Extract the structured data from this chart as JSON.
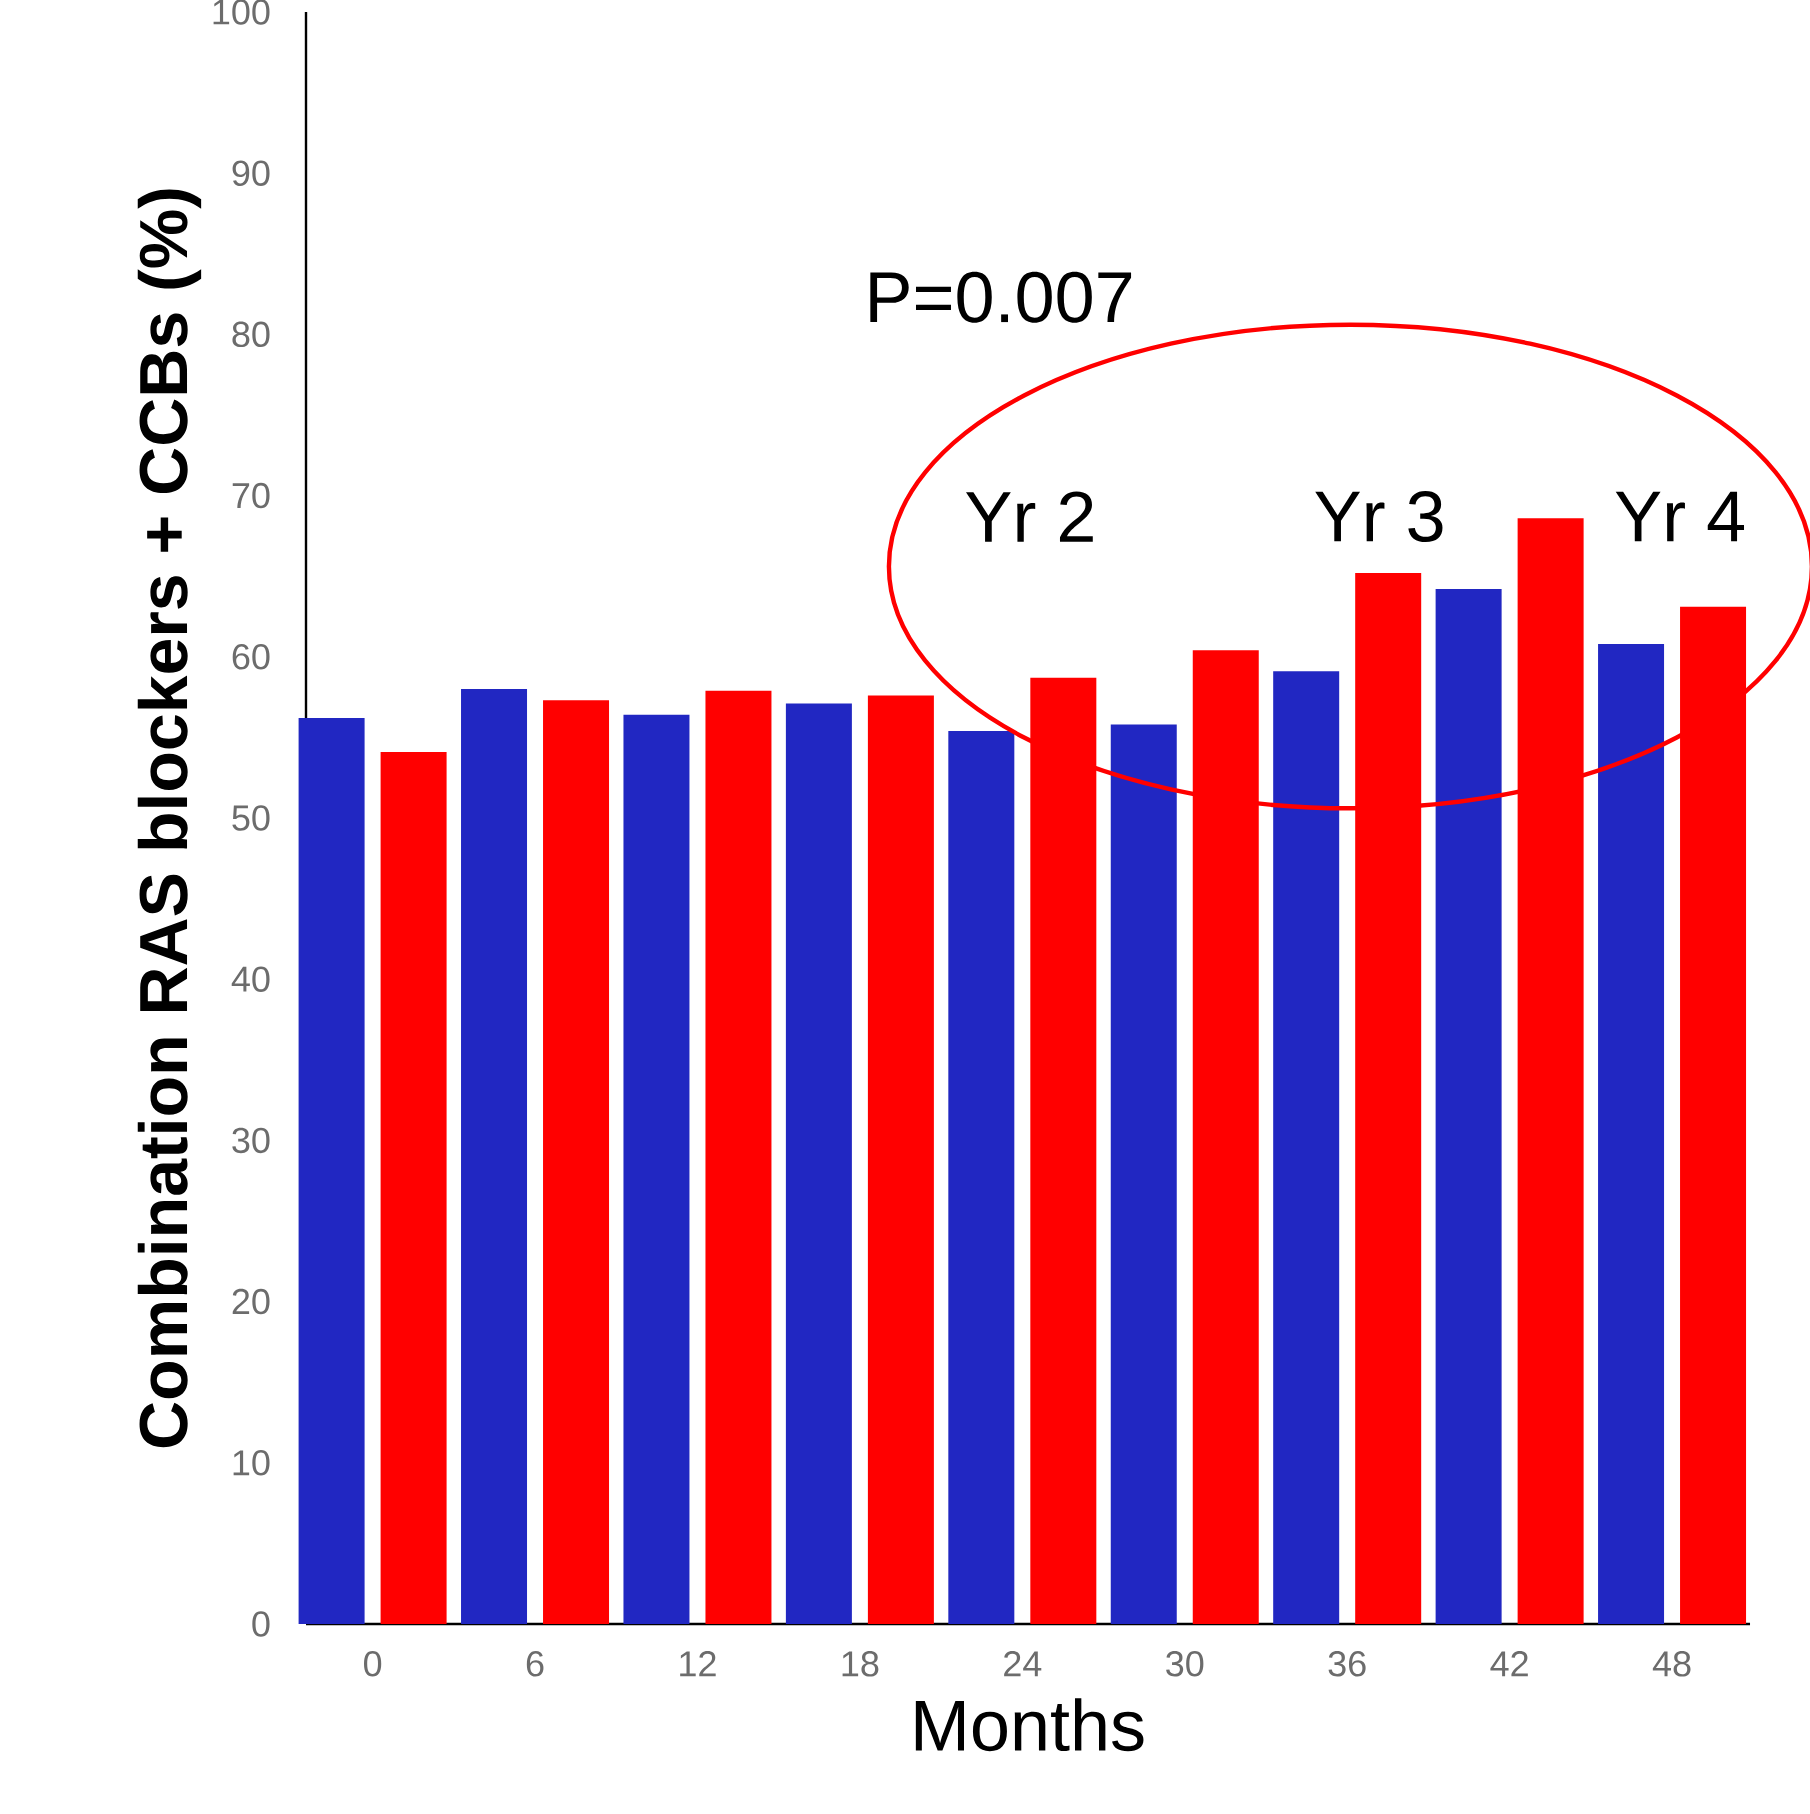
{
  "chart_data": {
    "type": "bar",
    "xlabel": "Months",
    "ylabel": "Combination RAS blockers + CCBs (%)",
    "categories": [
      "0",
      "6",
      "12",
      "18",
      "24",
      "30",
      "36",
      "42",
      "48"
    ],
    "series": [
      {
        "color": "#2127c2",
        "values": [
          56.2,
          58.0,
          56.4,
          57.1,
          55.4,
          55.8,
          59.1,
          64.2,
          60.8
        ]
      },
      {
        "color": "#ff0000",
        "values": [
          54.1,
          57.3,
          57.9,
          57.6,
          58.7,
          60.4,
          65.2,
          68.6,
          63.1
        ]
      }
    ],
    "ylim": [
      0,
      100
    ],
    "yticks": [
      0,
      10,
      20,
      30,
      40,
      50,
      60,
      70,
      80,
      90,
      100
    ],
    "annotations": [
      "P=0.007",
      "Yr 2",
      "Yr 3",
      "Yr 4"
    ]
  }
}
